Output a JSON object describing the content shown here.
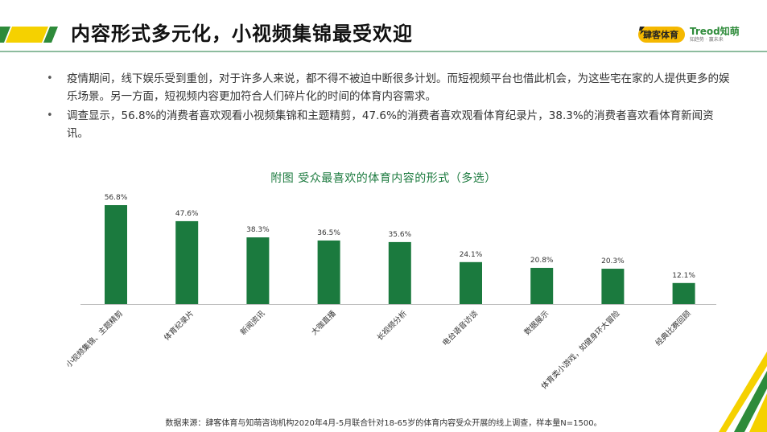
{
  "page": {
    "title": "内容形式多元化，小视频集锦最受欢迎",
    "logo_left": "肆客体育",
    "logo_right": "Treod知萌",
    "logo_right_tagline": "知趋势 · 赢未来"
  },
  "bullets": [
    "疫情期间，线下娱乐受到重创，对于许多人来说，都不得不被迫中断很多计划。而短视频平台也借此机会，为这些宅在家的人提供更多的娱乐场景。另一方面，短视频内容更加符合人们碎片化的时间的体育内容需求。",
    "调查显示，56.8%的消费者喜欢观看小视频集锦和主题精剪，47.6%的消费者喜欢观看体育纪录片，38.3%的消费者喜欢看体育新闻资讯。"
  ],
  "chart_data": {
    "type": "bar",
    "title": "附图  受众最喜欢的体育内容的形式（多选）",
    "categories": [
      "小视频集锦、主题精剪",
      "体育纪录片",
      "新闻资讯",
      "大咖直播",
      "长视频分析",
      "电台语音访谈",
      "数据展示",
      "体育类小游戏，如健身环大冒险",
      "经典比赛回顾"
    ],
    "values": [
      56.8,
      47.6,
      38.3,
      36.5,
      35.6,
      24.1,
      20.8,
      20.3,
      12.1
    ],
    "value_labels": [
      "56.8%",
      "47.6%",
      "38.3%",
      "36.5%",
      "35.6%",
      "24.1%",
      "20.8%",
      "20.3%",
      "12.1%"
    ],
    "unit": "%",
    "ylim": [
      0,
      56.8
    ],
    "grid": false,
    "bar_color": "#1b7a3e"
  },
  "source": "数据来源：肆客体育与知萌咨询机构2020年4月-5月联合针对18-65岁的体育内容受众开展的线上调查，样本量N=1500。",
  "colors": {
    "accent_green": "#1b7a3e",
    "stripe_green": "#2e8b3a",
    "stripe_yellow": "#f5d100"
  }
}
